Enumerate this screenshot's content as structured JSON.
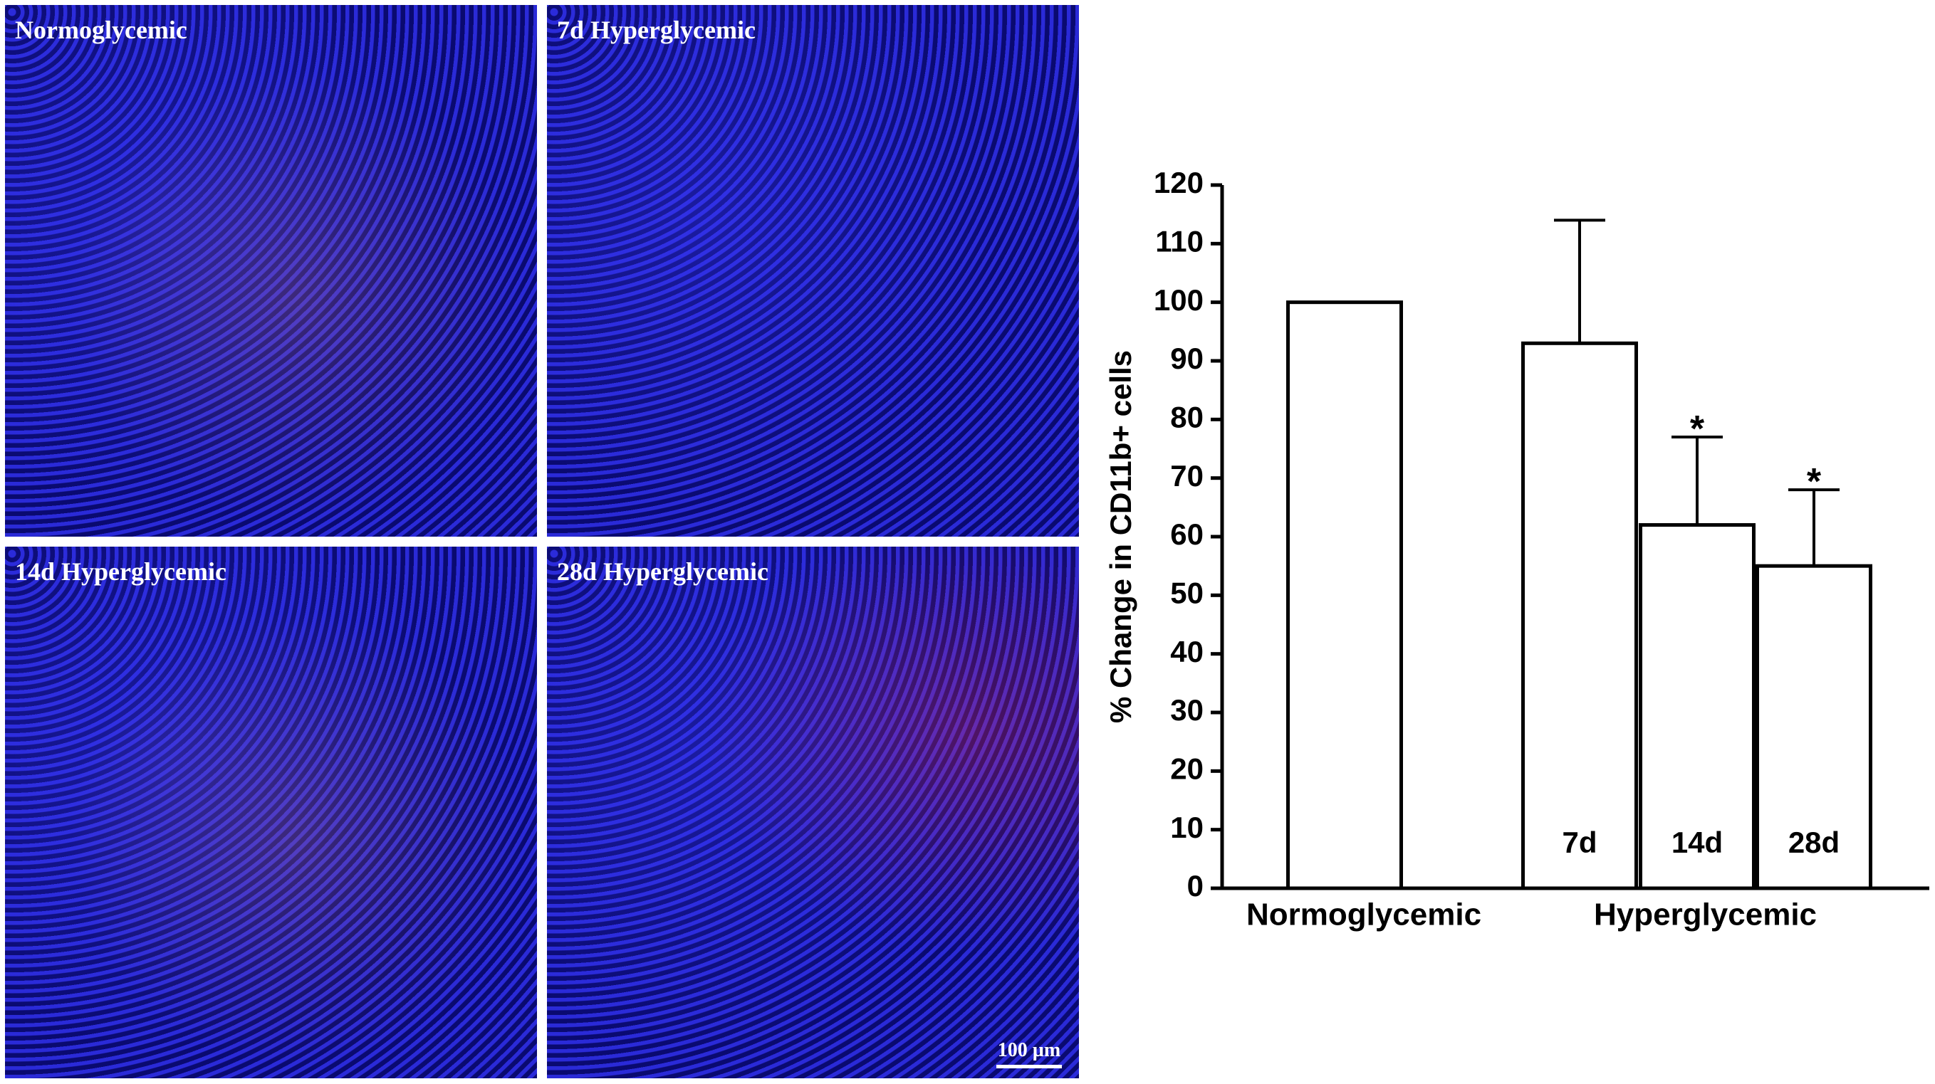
{
  "panels": [
    {
      "label": "Normoglycemic"
    },
    {
      "label": "7d Hyperglycemic"
    },
    {
      "label": "14d Hyperglycemic"
    },
    {
      "label": "28d Hyperglycemic"
    }
  ],
  "scale_bar": "100 µm",
  "chart_data": {
    "type": "bar",
    "y_label": "% Change in CD11b+ cells",
    "categories": [
      null,
      "7d",
      "14d",
      "28d"
    ],
    "values": [
      100,
      93,
      62,
      55
    ],
    "errors": [
      null,
      21,
      15,
      13
    ],
    "significance": [
      null,
      null,
      "*",
      "*"
    ],
    "groups": [
      "Normoglycemic",
      "Hyperglycemic"
    ],
    "color": "#ffffff",
    "ylim": [
      0,
      120
    ],
    "yticks": [
      0,
      10,
      20,
      30,
      40,
      50,
      60,
      70,
      80,
      90,
      100,
      110,
      120
    ]
  }
}
